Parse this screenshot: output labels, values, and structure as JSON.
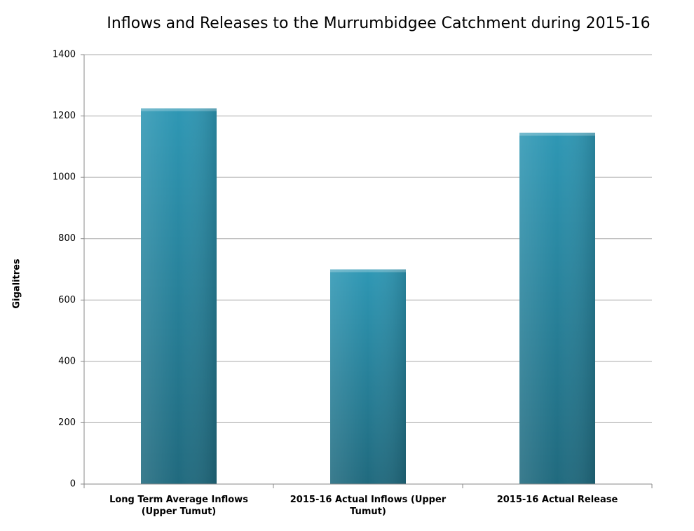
{
  "chart_data": {
    "type": "bar",
    "title": "Inflows and Releases to the Murrumbidgee Catchment during 2015-16",
    "y_label": "Gigalitres",
    "categories": [
      "Long Term Average Inflows (Upper Tumut)",
      "2015-16 Actual Inflows (Upper Tumut)",
      "2015-16 Actual Release"
    ],
    "values": [
      1225,
      700,
      1145
    ],
    "color": "#2e97b4",
    "ylim": [
      0,
      1400
    ],
    "yticks": [
      0,
      200,
      400,
      600,
      800,
      1000,
      1200,
      1400
    ],
    "grid": true
  }
}
